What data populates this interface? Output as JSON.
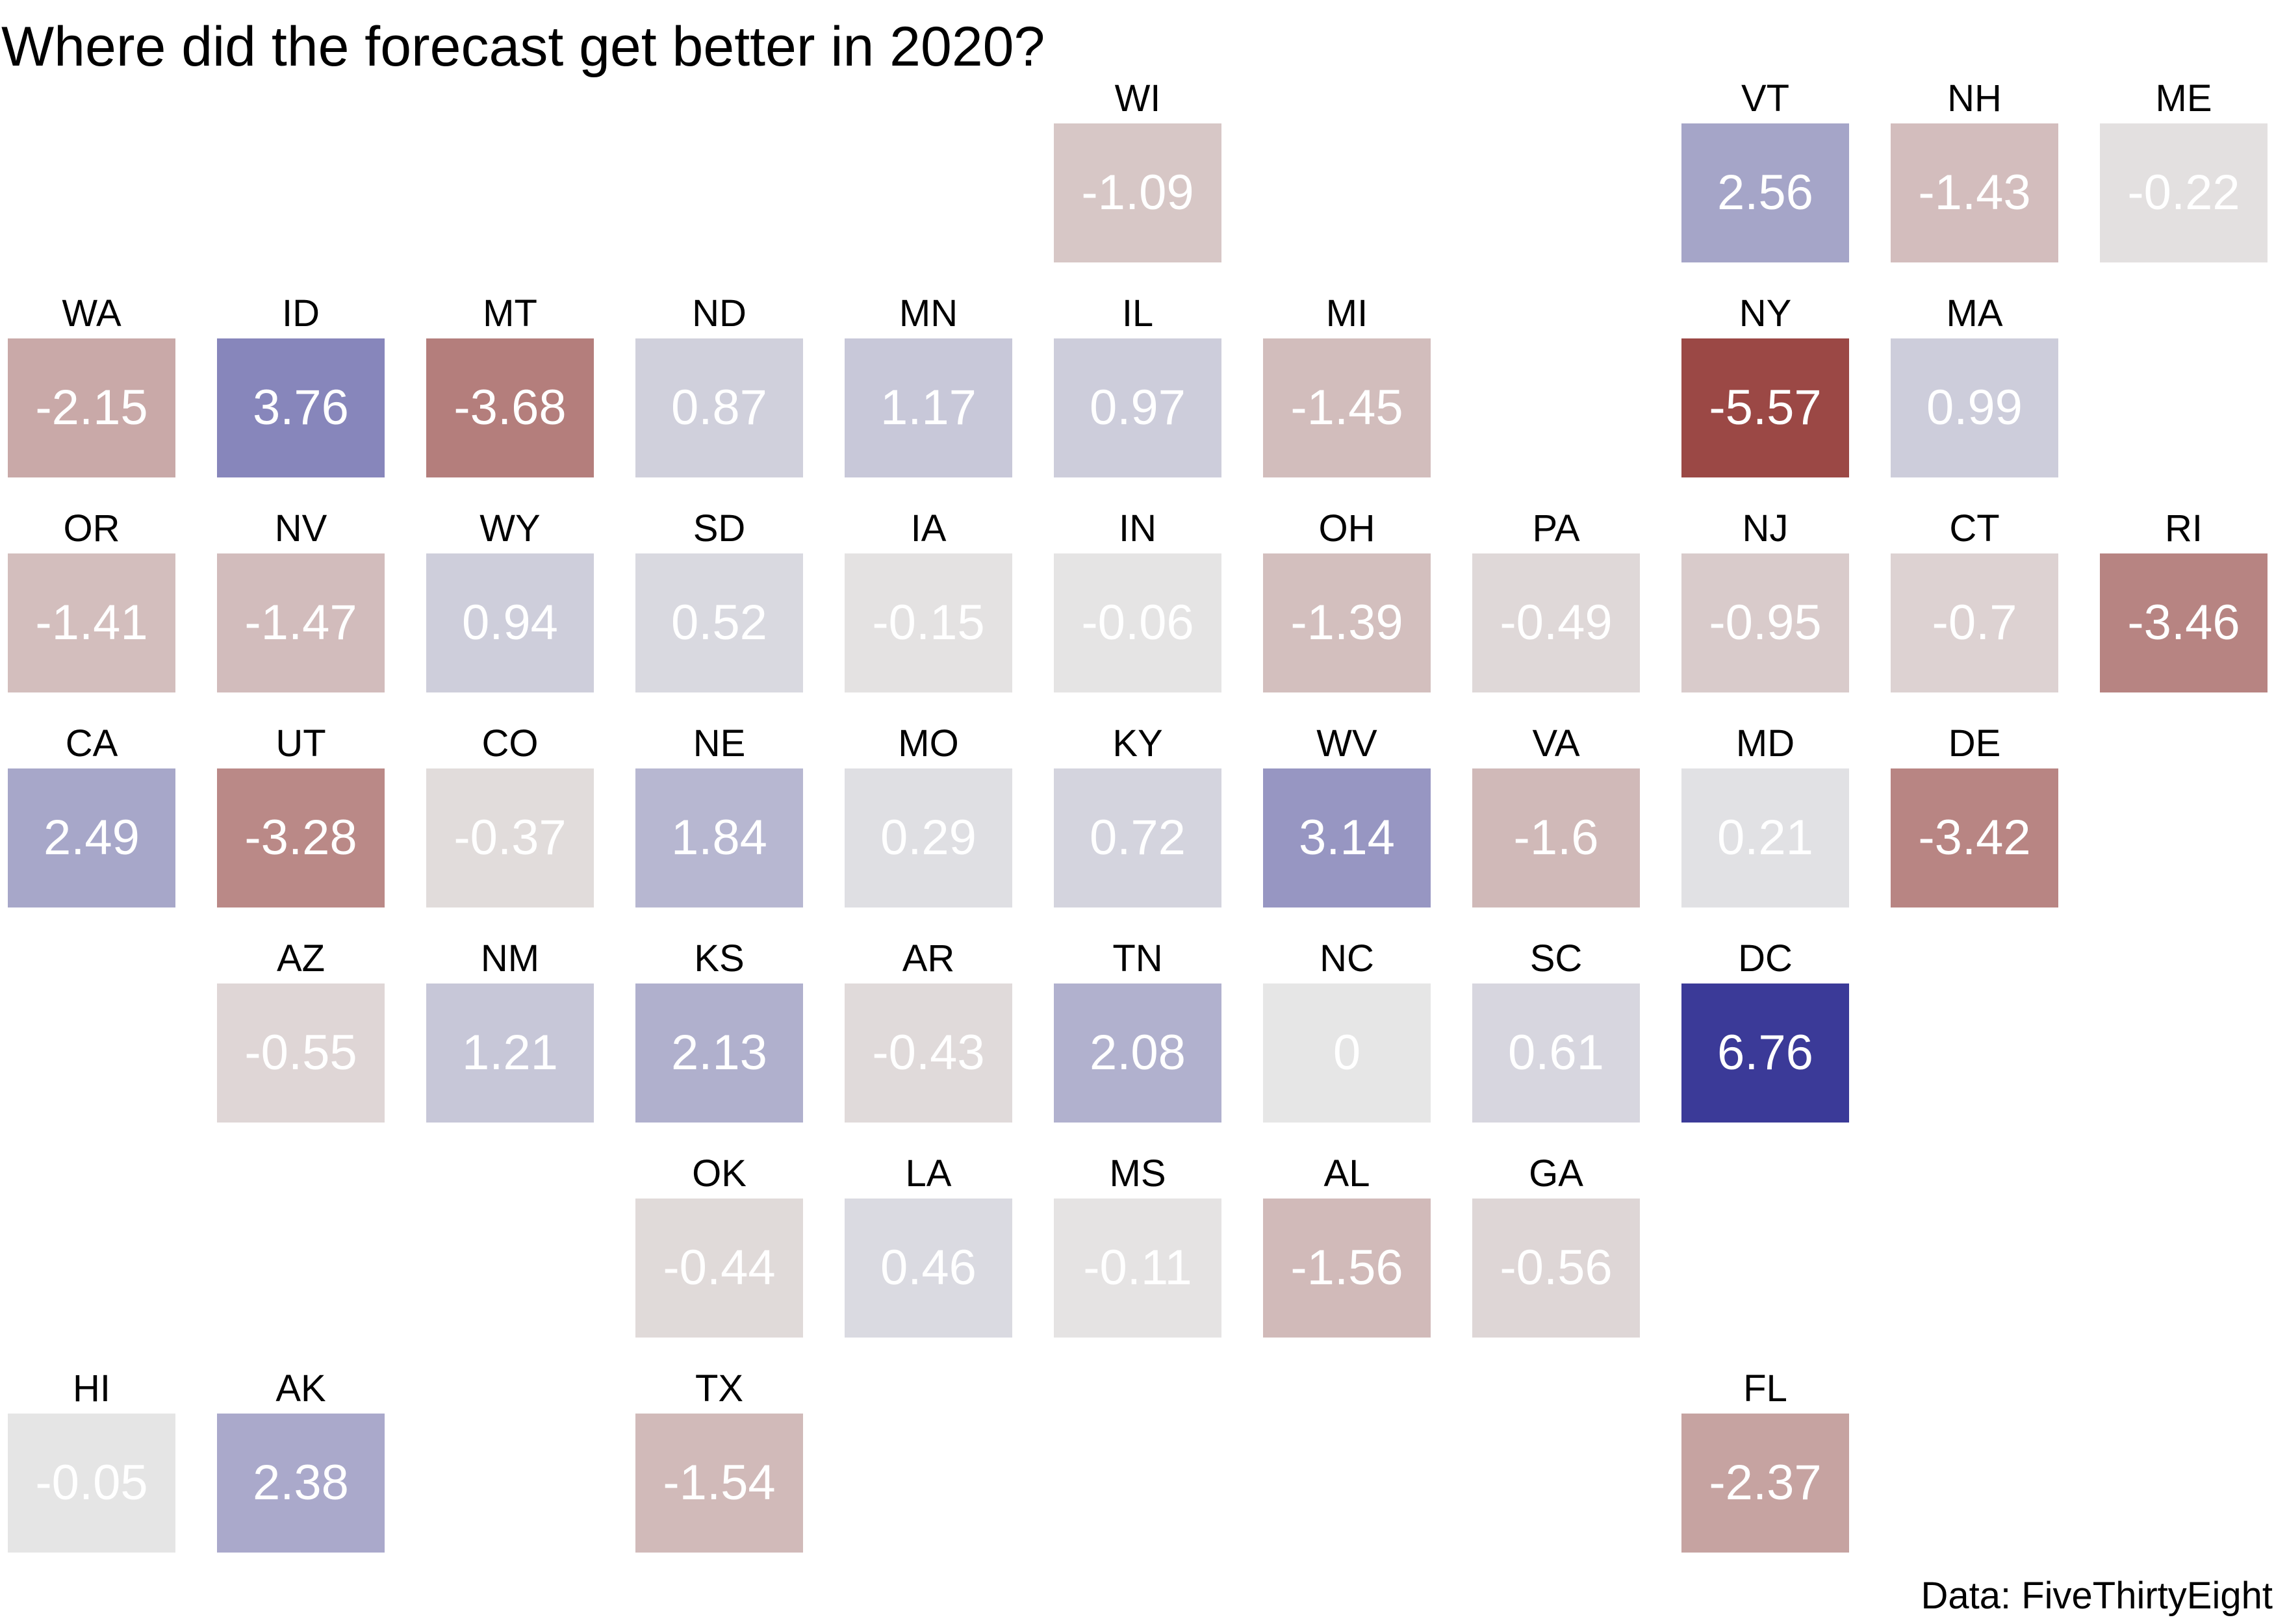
{
  "title": "Where did the forecast get better in 2020?",
  "caption": "Data: FiveThirtyEight",
  "color_scale": {
    "negative": "#9b4845",
    "neutral": "#e6e6e6",
    "positive": "#3b3a98",
    "domain_min": -5.57,
    "domain_max": 6.76
  },
  "chart_data": {
    "type": "heatmap",
    "layout": "tile-grid",
    "title": "Where did the forecast get better in 2020?",
    "caption": "Data: FiveThirtyEight",
    "tiles": [
      {
        "state": "WI",
        "value": -1.09,
        "value_label": "-1.09",
        "row": 0,
        "col": 5
      },
      {
        "state": "VT",
        "value": 2.56,
        "value_label": "2.56",
        "row": 0,
        "col": 8
      },
      {
        "state": "NH",
        "value": -1.43,
        "value_label": "-1.43",
        "row": 0,
        "col": 9
      },
      {
        "state": "ME",
        "value": -0.22,
        "value_label": "-0.22",
        "row": 0,
        "col": 10
      },
      {
        "state": "WA",
        "value": -2.15,
        "value_label": "-2.15",
        "row": 1,
        "col": 0
      },
      {
        "state": "ID",
        "value": 3.76,
        "value_label": "3.76",
        "row": 1,
        "col": 1
      },
      {
        "state": "MT",
        "value": -3.68,
        "value_label": "-3.68",
        "row": 1,
        "col": 2
      },
      {
        "state": "ND",
        "value": 0.87,
        "value_label": "0.87",
        "row": 1,
        "col": 3
      },
      {
        "state": "MN",
        "value": 1.17,
        "value_label": "1.17",
        "row": 1,
        "col": 4
      },
      {
        "state": "IL",
        "value": 0.97,
        "value_label": "0.97",
        "row": 1,
        "col": 5
      },
      {
        "state": "MI",
        "value": -1.45,
        "value_label": "-1.45",
        "row": 1,
        "col": 6
      },
      {
        "state": "NY",
        "value": -5.57,
        "value_label": "-5.57",
        "row": 1,
        "col": 8
      },
      {
        "state": "MA",
        "value": 0.99,
        "value_label": "0.99",
        "row": 1,
        "col": 9
      },
      {
        "state": "OR",
        "value": -1.41,
        "value_label": "-1.41",
        "row": 2,
        "col": 0
      },
      {
        "state": "NV",
        "value": -1.47,
        "value_label": "-1.47",
        "row": 2,
        "col": 1
      },
      {
        "state": "WY",
        "value": 0.94,
        "value_label": "0.94",
        "row": 2,
        "col": 2
      },
      {
        "state": "SD",
        "value": 0.52,
        "value_label": "0.52",
        "row": 2,
        "col": 3
      },
      {
        "state": "IA",
        "value": -0.15,
        "value_label": "-0.15",
        "row": 2,
        "col": 4
      },
      {
        "state": "IN",
        "value": -0.06,
        "value_label": "-0.06",
        "row": 2,
        "col": 5
      },
      {
        "state": "OH",
        "value": -1.39,
        "value_label": "-1.39",
        "row": 2,
        "col": 6
      },
      {
        "state": "PA",
        "value": -0.49,
        "value_label": "-0.49",
        "row": 2,
        "col": 7
      },
      {
        "state": "NJ",
        "value": -0.95,
        "value_label": "-0.95",
        "row": 2,
        "col": 8
      },
      {
        "state": "CT",
        "value": -0.7,
        "value_label": "-0.7",
        "row": 2,
        "col": 9
      },
      {
        "state": "RI",
        "value": -3.46,
        "value_label": "-3.46",
        "row": 2,
        "col": 10
      },
      {
        "state": "CA",
        "value": 2.49,
        "value_label": "2.49",
        "row": 3,
        "col": 0
      },
      {
        "state": "UT",
        "value": -3.28,
        "value_label": "-3.28",
        "row": 3,
        "col": 1
      },
      {
        "state": "CO",
        "value": -0.37,
        "value_label": "-0.37",
        "row": 3,
        "col": 2
      },
      {
        "state": "NE",
        "value": 1.84,
        "value_label": "1.84",
        "row": 3,
        "col": 3
      },
      {
        "state": "MO",
        "value": 0.29,
        "value_label": "0.29",
        "row": 3,
        "col": 4
      },
      {
        "state": "KY",
        "value": 0.72,
        "value_label": "0.72",
        "row": 3,
        "col": 5
      },
      {
        "state": "WV",
        "value": 3.14,
        "value_label": "3.14",
        "row": 3,
        "col": 6
      },
      {
        "state": "VA",
        "value": -1.6,
        "value_label": "-1.6",
        "row": 3,
        "col": 7
      },
      {
        "state": "MD",
        "value": 0.21,
        "value_label": "0.21",
        "row": 3,
        "col": 8
      },
      {
        "state": "DE",
        "value": -3.42,
        "value_label": "-3.42",
        "row": 3,
        "col": 9
      },
      {
        "state": "AZ",
        "value": -0.55,
        "value_label": "-0.55",
        "row": 4,
        "col": 1
      },
      {
        "state": "NM",
        "value": 1.21,
        "value_label": "1.21",
        "row": 4,
        "col": 2
      },
      {
        "state": "KS",
        "value": 2.13,
        "value_label": "2.13",
        "row": 4,
        "col": 3
      },
      {
        "state": "AR",
        "value": -0.43,
        "value_label": "-0.43",
        "row": 4,
        "col": 4
      },
      {
        "state": "TN",
        "value": 2.08,
        "value_label": "2.08",
        "row": 4,
        "col": 5
      },
      {
        "state": "NC",
        "value": 0,
        "value_label": "0",
        "row": 4,
        "col": 6
      },
      {
        "state": "SC",
        "value": 0.61,
        "value_label": "0.61",
        "row": 4,
        "col": 7
      },
      {
        "state": "DC",
        "value": 6.76,
        "value_label": "6.76",
        "row": 4,
        "col": 8
      },
      {
        "state": "OK",
        "value": -0.44,
        "value_label": "-0.44",
        "row": 5,
        "col": 3
      },
      {
        "state": "LA",
        "value": 0.46,
        "value_label": "0.46",
        "row": 5,
        "col": 4
      },
      {
        "state": "MS",
        "value": -0.11,
        "value_label": "-0.11",
        "row": 5,
        "col": 5
      },
      {
        "state": "AL",
        "value": -1.56,
        "value_label": "-1.56",
        "row": 5,
        "col": 6
      },
      {
        "state": "GA",
        "value": -0.56,
        "value_label": "-0.56",
        "row": 5,
        "col": 7
      },
      {
        "state": "HI",
        "value": -0.05,
        "value_label": "-0.05",
        "row": 6,
        "col": 0
      },
      {
        "state": "AK",
        "value": 2.38,
        "value_label": "2.38",
        "row": 6,
        "col": 1
      },
      {
        "state": "TX",
        "value": -1.54,
        "value_label": "-1.54",
        "row": 6,
        "col": 3
      },
      {
        "state": "FL",
        "value": -2.37,
        "value_label": "-2.37",
        "row": 6,
        "col": 8
      }
    ]
  }
}
